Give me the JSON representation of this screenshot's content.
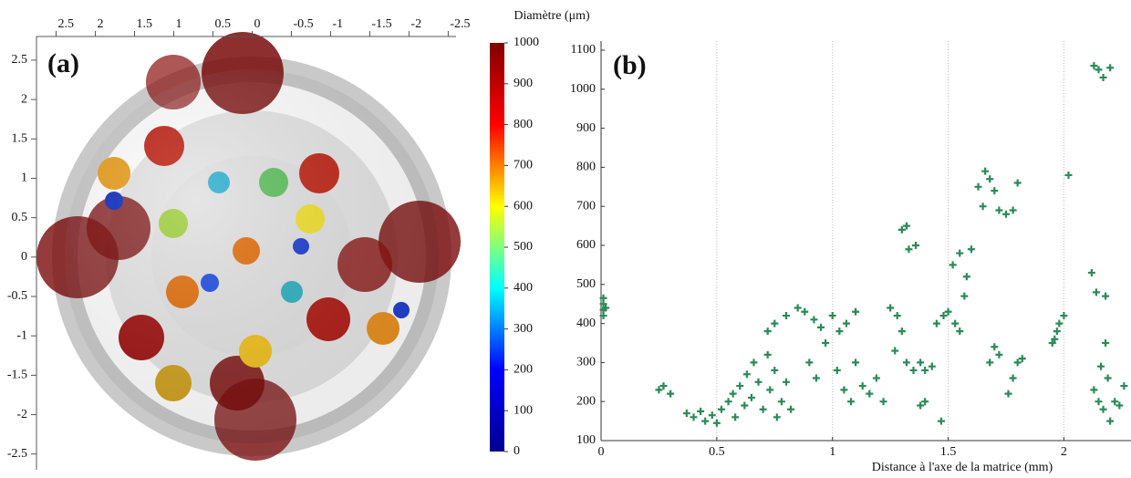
{
  "chart_data": [
    {
      "type": "render3d",
      "label": "(a)",
      "xlim": [
        2.75,
        -2.6
      ],
      "xticks": [
        2.5,
        2,
        1.5,
        1,
        0.5,
        0,
        -0.5,
        -1,
        -1.5,
        -2,
        -2.5
      ],
      "ylim": [
        2.8,
        -2.7
      ],
      "yticks": [
        2.5,
        2,
        1.5,
        1,
        0.5,
        0,
        -0.5,
        -1,
        -1.5,
        -2,
        -2.5
      ]
    },
    {
      "type": "colorbar",
      "title": "Diamètre (μm)",
      "ylim": [
        0,
        1000
      ],
      "yticks": [
        0,
        100,
        200,
        300,
        400,
        500,
        600,
        700,
        800,
        900,
        1000
      ],
      "colors": [
        "#00008f",
        "#0000ff",
        "#00ffff",
        "#ffff00",
        "#ff0000",
        "#800000"
      ]
    },
    {
      "type": "scatter",
      "label": "(b)",
      "xlabel": "Distance à l'axe de la matrice (mm)",
      "color": "#2a8a58",
      "grid": "x",
      "xlim": [
        0,
        2.29
      ],
      "xticks": [
        0,
        0.5,
        1,
        1.5,
        2
      ],
      "ylim": [
        100,
        1100
      ],
      "yticks": [
        100,
        200,
        300,
        400,
        500,
        600,
        700,
        800,
        900,
        1000,
        1100
      ],
      "x": [
        0.01,
        0.01,
        0.01,
        0.01,
        0.02,
        0.27,
        0.25,
        0.3,
        0.37,
        0.4,
        0.43,
        0.45,
        0.48,
        0.5,
        0.52,
        0.55,
        0.57,
        0.58,
        0.6,
        0.62,
        0.63,
        0.65,
        0.66,
        0.68,
        0.7,
        0.72,
        0.73,
        0.75,
        0.76,
        0.78,
        0.8,
        0.82,
        0.72,
        0.75,
        0.8,
        0.85,
        0.88,
        0.92,
        0.95,
        1.0,
        1.03,
        1.06,
        1.1,
        0.97,
        0.9,
        0.93,
        1.02,
        1.05,
        1.08,
        1.1,
        1.13,
        1.16,
        1.19,
        1.22,
        1.25,
        1.28,
        1.3,
        1.32,
        1.33,
        1.36,
        1.3,
        1.27,
        1.32,
        1.35,
        1.38,
        1.4,
        1.43,
        1.45,
        1.48,
        1.4,
        1.38,
        1.47,
        1.5,
        1.53,
        1.55,
        1.52,
        1.55,
        1.58,
        1.6,
        1.57,
        1.63,
        1.66,
        1.68,
        1.7,
        1.65,
        1.72,
        1.75,
        1.78,
        1.8,
        1.68,
        1.7,
        1.72,
        1.76,
        1.78,
        1.8,
        1.82,
        1.95,
        1.97,
        1.98,
        2.0,
        1.96,
        2.02,
        2.13,
        2.15,
        2.17,
        2.2,
        2.12,
        2.14,
        2.18,
        2.13,
        2.15,
        2.17,
        2.19,
        2.2,
        2.22,
        2.24,
        2.26,
        2.18,
        2.16
      ],
      "values": [
        420,
        435,
        450,
        465,
        440,
        240,
        230,
        220,
        170,
        160,
        175,
        150,
        165,
        145,
        180,
        200,
        220,
        160,
        240,
        190,
        270,
        210,
        300,
        250,
        180,
        320,
        230,
        280,
        160,
        200,
        250,
        180,
        380,
        400,
        420,
        440,
        430,
        410,
        390,
        420,
        380,
        400,
        430,
        350,
        300,
        260,
        280,
        230,
        200,
        300,
        240,
        220,
        260,
        200,
        440,
        420,
        640,
        650,
        590,
        600,
        380,
        330,
        300,
        280,
        300,
        280,
        290,
        400,
        420,
        200,
        190,
        150,
        430,
        400,
        380,
        550,
        580,
        520,
        590,
        470,
        750,
        790,
        770,
        740,
        700,
        690,
        680,
        690,
        760,
        300,
        340,
        320,
        220,
        260,
        300,
        310,
        350,
        380,
        400,
        420,
        360,
        780,
        1060,
        1050,
        1030,
        1055,
        530,
        480,
        470,
        230,
        200,
        180,
        260,
        150,
        200,
        190,
        240,
        350,
        290
      ]
    }
  ]
}
